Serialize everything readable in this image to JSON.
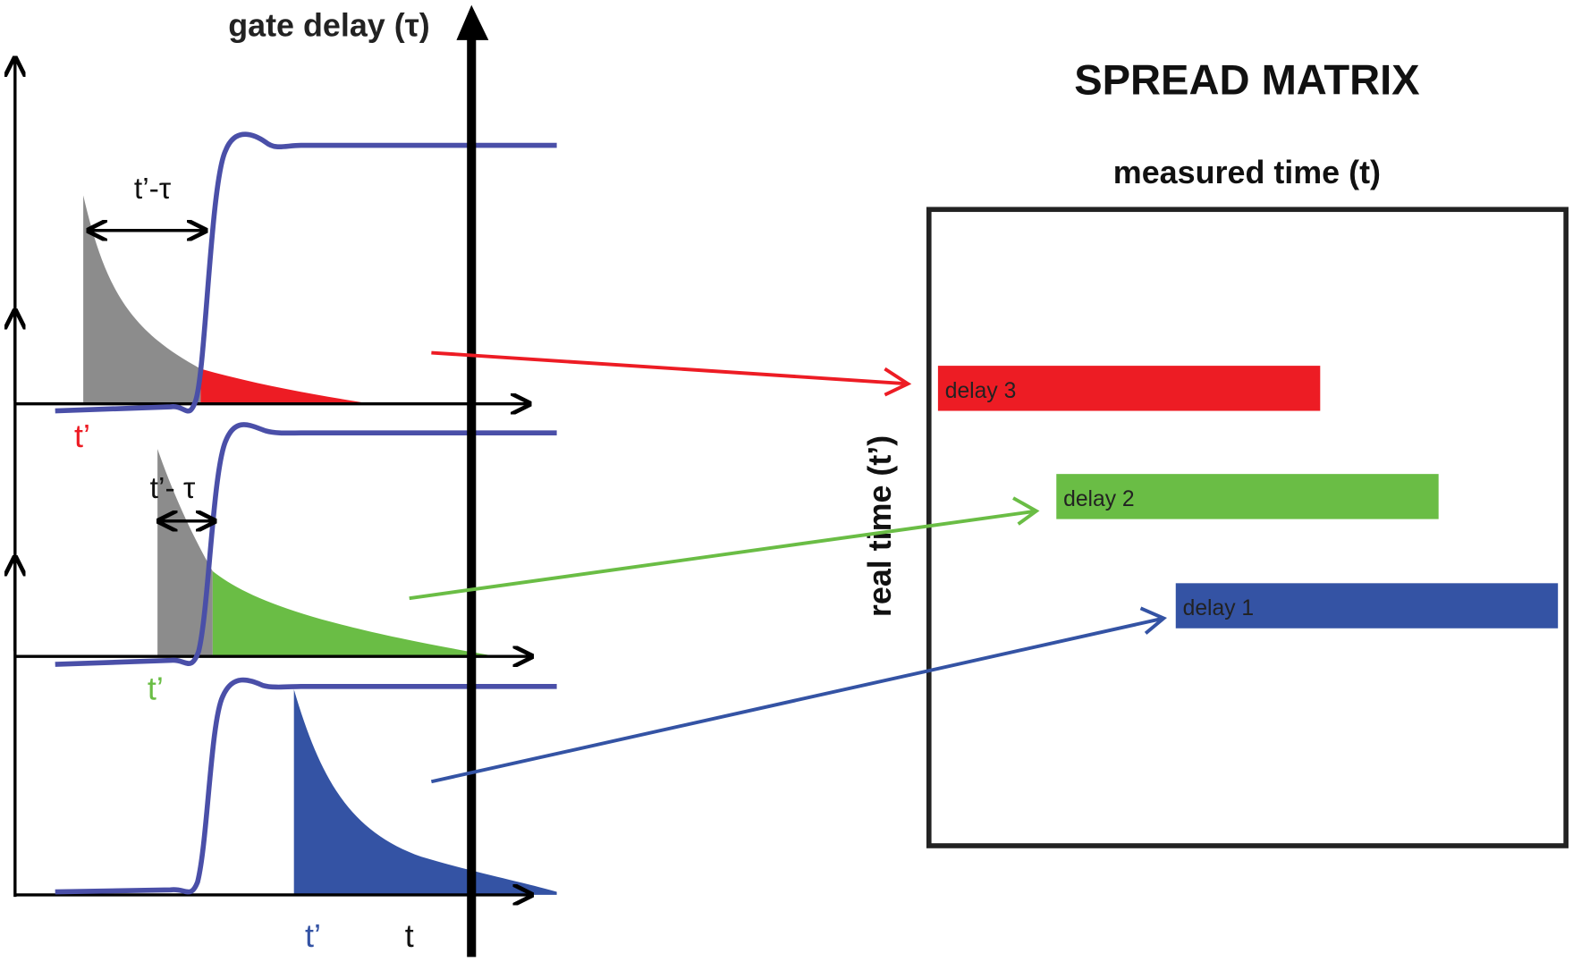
{
  "left": {
    "gate_axis_label": "gate delay (τ)",
    "panel3_interval": "t’-τ",
    "panel2_interval": "t’- τ",
    "t_prime_red": "t’",
    "t_prime_green": "t’",
    "t_prime_blue": "t’",
    "t_label": "t"
  },
  "right": {
    "title": "SPREAD MATRIX",
    "x_label": "measured time (t)",
    "y_label": "real time (t’)",
    "bars": [
      {
        "label": "delay 3",
        "color": "#ed1c24"
      },
      {
        "label": "delay 2",
        "color": "#6abd45"
      },
      {
        "label": "delay 1",
        "color": "#3453a4"
      }
    ]
  },
  "colors": {
    "red": "#ed1c24",
    "green": "#6abd45",
    "blue": "#3453a4",
    "gate": "#4a4fa8",
    "gray": "#8c8c8c"
  }
}
